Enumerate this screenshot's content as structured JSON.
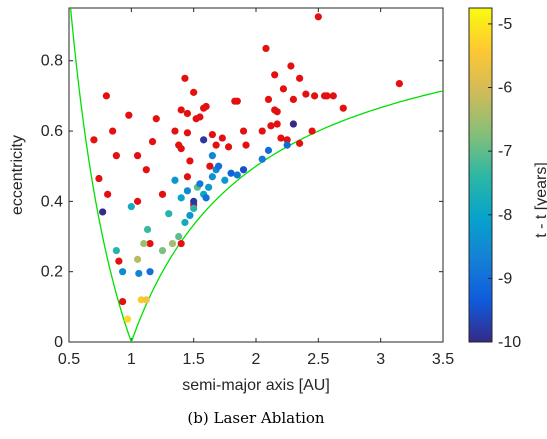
{
  "chart_data": {
    "type": "scatter",
    "xlabel": "semi-major axis [AU]",
    "ylabel": "eccentricity",
    "caption": "(b) Laser Ablation",
    "xlim": [
      0.5,
      3.5
    ],
    "ylim": [
      0,
      0.95
    ],
    "xticks": [
      "0.5",
      "1",
      "1.5",
      "2",
      "2.5",
      "3",
      "3.5"
    ],
    "yticks": [
      "0",
      "0.2",
      "0.4",
      "0.6",
      "0.8"
    ],
    "colorbar": {
      "label": "t - t [years]",
      "range": [
        -10,
        -4.75
      ],
      "ticks": [
        "-5",
        "-6",
        "-7",
        "-8",
        "-9",
        "-10"
      ],
      "colormap": "parula"
    },
    "curve_color": "#00e000",
    "unassigned_color": "#e41010",
    "series": [
      {
        "values": [
          [
            0.7,
            0.575
          ],
          [
            0.74,
            0.465
          ],
          [
            0.8,
            0.7
          ],
          [
            0.81,
            0.42
          ],
          [
            0.85,
            0.6
          ],
          [
            0.88,
            0.53
          ],
          [
            0.9,
            0.23
          ],
          [
            0.93,
            0.115
          ],
          [
            0.98,
            0.645
          ],
          [
            1.05,
            0.53
          ],
          [
            1.05,
            0.4
          ],
          [
            1.12,
            0.49
          ],
          [
            1.15,
            0.28
          ],
          [
            1.17,
            0.57
          ],
          [
            1.2,
            0.635
          ],
          [
            1.25,
            0.42
          ],
          [
            1.35,
            0.6
          ],
          [
            1.38,
            0.56
          ],
          [
            1.4,
            0.66
          ],
          [
            1.4,
            0.55
          ],
          [
            1.43,
            0.75
          ],
          [
            1.45,
            0.65
          ],
          [
            1.45,
            0.595
          ],
          [
            1.45,
            0.47
          ],
          [
            1.47,
            0.515
          ],
          [
            1.5,
            0.71
          ],
          [
            1.52,
            0.635
          ],
          [
            1.55,
            0.64
          ],
          [
            1.58,
            0.665
          ],
          [
            1.6,
            0.67
          ],
          [
            1.63,
            0.5
          ],
          [
            1.65,
            0.59
          ],
          [
            1.68,
            0.56
          ],
          [
            1.73,
            0.58
          ],
          [
            1.78,
            0.555
          ],
          [
            1.83,
            0.685
          ],
          [
            1.85,
            0.685
          ],
          [
            1.9,
            0.6
          ],
          [
            1.92,
            0.56
          ],
          [
            2.05,
            0.6
          ],
          [
            2.08,
            0.835
          ],
          [
            2.1,
            0.69
          ],
          [
            2.12,
            0.615
          ],
          [
            2.15,
            0.76
          ],
          [
            2.15,
            0.66
          ],
          [
            2.17,
            0.655
          ],
          [
            2.17,
            0.62
          ],
          [
            2.2,
            0.58
          ],
          [
            2.22,
            0.72
          ],
          [
            2.25,
            0.575
          ],
          [
            2.28,
            0.785
          ],
          [
            2.3,
            0.69
          ],
          [
            2.35,
            0.75
          ],
          [
            2.35,
            0.565
          ],
          [
            2.4,
            0.705
          ],
          [
            2.45,
            0.6
          ],
          [
            2.47,
            0.7
          ],
          [
            2.5,
            0.925
          ],
          [
            2.55,
            0.7
          ],
          [
            2.57,
            0.7
          ],
          [
            2.62,
            0.7
          ],
          [
            2.7,
            0.665
          ],
          [
            3.15,
            0.735
          ],
          [
            1.4,
            0.28
          ],
          [
            1.5,
            0.39
          ]
        ]
      },
      {
        "values": [
          [
            0.77,
            0.37
          ],
          [
            0.88,
            0.26
          ],
          [
            0.93,
            0.2
          ],
          [
            0.97,
            0.065
          ],
          [
            1.0,
            0.385
          ],
          [
            1.05,
            0.235
          ],
          [
            1.06,
            0.195
          ],
          [
            1.08,
            0.12
          ],
          [
            1.1,
            0.28
          ],
          [
            1.12,
            0.12
          ],
          [
            1.13,
            0.32
          ],
          [
            1.15,
            0.2
          ],
          [
            1.25,
            0.26
          ],
          [
            1.3,
            0.365
          ],
          [
            1.33,
            0.28
          ],
          [
            1.35,
            0.46
          ],
          [
            1.38,
            0.3
          ],
          [
            1.4,
            0.41
          ],
          [
            1.43,
            0.34
          ],
          [
            1.45,
            0.43
          ],
          [
            1.47,
            0.36
          ],
          [
            1.5,
            0.4
          ],
          [
            1.5,
            0.38
          ],
          [
            1.53,
            0.44
          ],
          [
            1.55,
            0.45
          ],
          [
            1.58,
            0.42
          ],
          [
            1.6,
            0.41
          ],
          [
            1.62,
            0.44
          ],
          [
            1.65,
            0.47
          ],
          [
            1.65,
            0.53
          ],
          [
            1.68,
            0.49
          ],
          [
            1.7,
            0.5
          ],
          [
            1.75,
            0.46
          ],
          [
            1.8,
            0.48
          ],
          [
            1.85,
            0.475
          ],
          [
            1.9,
            0.49
          ],
          [
            2.05,
            0.52
          ],
          [
            2.1,
            0.545
          ],
          [
            2.25,
            0.56
          ],
          [
            1.58,
            0.575
          ],
          [
            2.3,
            0.62
          ]
        ],
        "colors": [
          -10,
          -7.5,
          -8.5,
          -5.2,
          -7.8,
          -6.3,
          -8.6,
          -5.4,
          -6.5,
          -5.6,
          -7.3,
          -9.0,
          -6.8,
          -7.5,
          -6.5,
          -8.3,
          -7.0,
          -8.0,
          -7.8,
          -8.5,
          -8.3,
          -9.8,
          -7.5,
          -7.0,
          -8.8,
          -8.0,
          -9.0,
          -8.2,
          -8.4,
          -8.6,
          -8.5,
          -9.0,
          -8.2,
          -9.2,
          -8.9,
          -9.5,
          -8.8,
          -9.0,
          -9.1,
          -9.8,
          -10
        ]
      }
    ]
  }
}
